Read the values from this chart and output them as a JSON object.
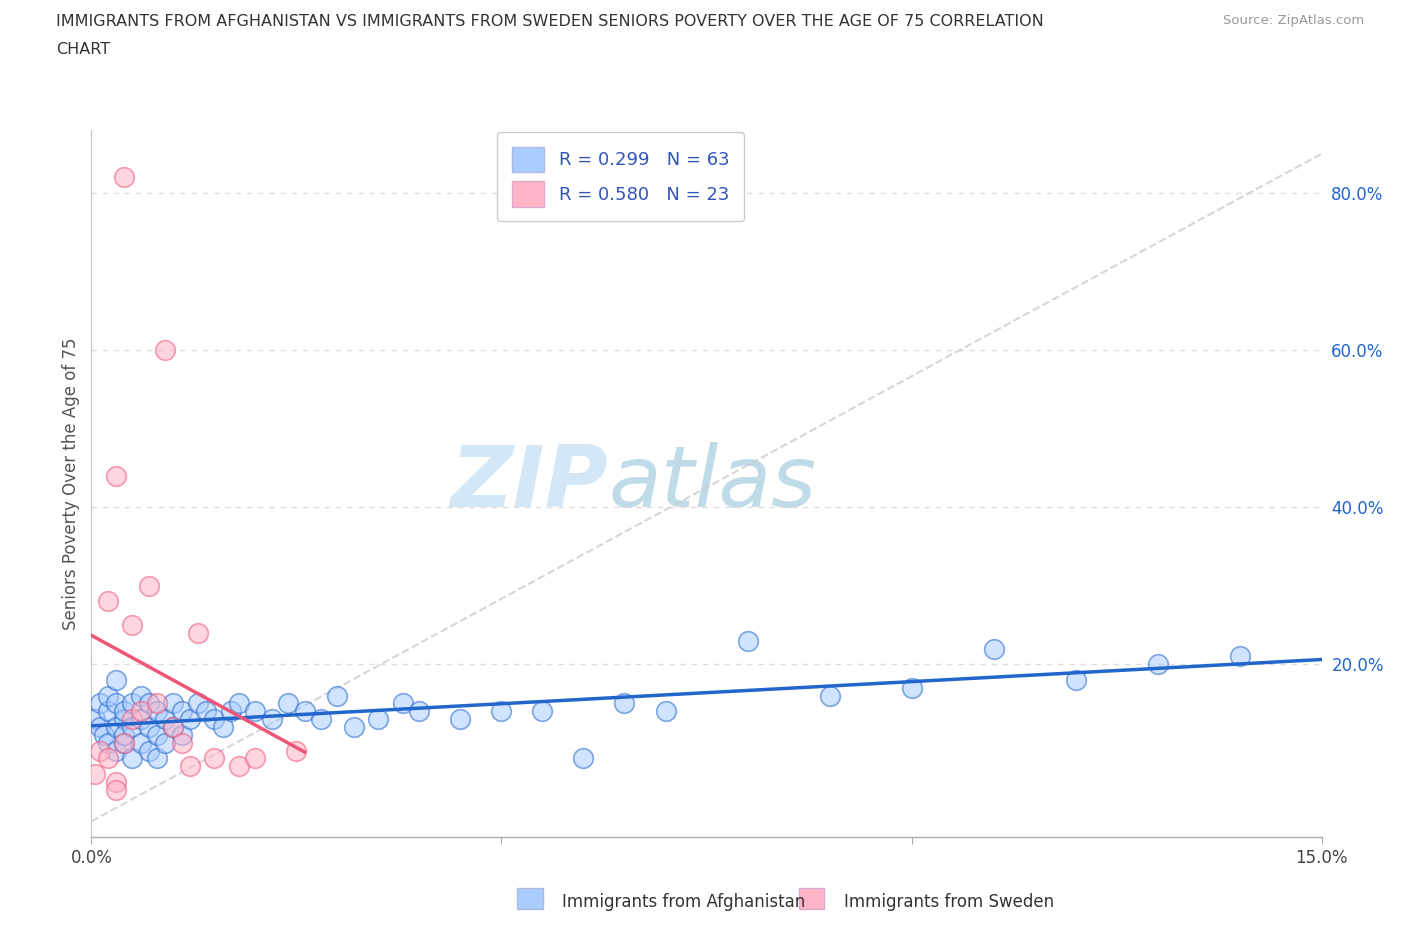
{
  "title_line1": "IMMIGRANTS FROM AFGHANISTAN VS IMMIGRANTS FROM SWEDEN SENIORS POVERTY OVER THE AGE OF 75 CORRELATION",
  "title_line2": "CHART",
  "source": "Source: ZipAtlas.com",
  "xlabel_bottom_af": "Immigrants from Afghanistan",
  "xlabel_bottom_sw": "Immigrants from Sweden",
  "ylabel": "Seniors Poverty Over the Age of 75",
  "xlim": [
    0.0,
    0.15
  ],
  "ylim": [
    -0.02,
    0.88
  ],
  "yticks_right": [
    0.2,
    0.4,
    0.6,
    0.8
  ],
  "ytick_right_labels": [
    "20.0%",
    "40.0%",
    "60.0%",
    "80.0%"
  ],
  "color_afghanistan": "#aaccff",
  "color_sweden": "#ffb3c6",
  "color_line_afghanistan": "#2266cc",
  "color_line_sweden": "#ee5577",
  "color_ref_line": "#cccccc",
  "R_afghanistan": 0.299,
  "N_afghanistan": 63,
  "R_sweden": 0.58,
  "N_sweden": 23,
  "afghanistan_x": [
    0.0005,
    0.001,
    0.001,
    0.0015,
    0.002,
    0.002,
    0.002,
    0.003,
    0.003,
    0.003,
    0.003,
    0.004,
    0.004,
    0.004,
    0.004,
    0.005,
    0.005,
    0.005,
    0.006,
    0.006,
    0.006,
    0.007,
    0.007,
    0.007,
    0.008,
    0.008,
    0.008,
    0.009,
    0.009,
    0.01,
    0.01,
    0.011,
    0.011,
    0.012,
    0.013,
    0.014,
    0.015,
    0.016,
    0.017,
    0.018,
    0.02,
    0.022,
    0.024,
    0.026,
    0.028,
    0.03,
    0.032,
    0.035,
    0.038,
    0.04,
    0.045,
    0.05,
    0.055,
    0.06,
    0.065,
    0.07,
    0.08,
    0.09,
    0.1,
    0.11,
    0.12,
    0.13,
    0.14
  ],
  "afghanistan_y": [
    0.13,
    0.12,
    0.15,
    0.11,
    0.1,
    0.14,
    0.16,
    0.09,
    0.12,
    0.15,
    0.18,
    0.1,
    0.13,
    0.11,
    0.14,
    0.08,
    0.12,
    0.15,
    0.1,
    0.13,
    0.16,
    0.09,
    0.12,
    0.15,
    0.08,
    0.11,
    0.14,
    0.1,
    0.13,
    0.12,
    0.15,
    0.11,
    0.14,
    0.13,
    0.15,
    0.14,
    0.13,
    0.12,
    0.14,
    0.15,
    0.14,
    0.13,
    0.15,
    0.14,
    0.13,
    0.16,
    0.12,
    0.13,
    0.15,
    0.14,
    0.13,
    0.14,
    0.14,
    0.08,
    0.15,
    0.14,
    0.23,
    0.16,
    0.17,
    0.22,
    0.18,
    0.2,
    0.21
  ],
  "sweden_x": [
    0.0005,
    0.001,
    0.002,
    0.002,
    0.003,
    0.003,
    0.004,
    0.005,
    0.005,
    0.006,
    0.007,
    0.008,
    0.009,
    0.01,
    0.011,
    0.012,
    0.013,
    0.015,
    0.018,
    0.02,
    0.025,
    0.003,
    0.004
  ],
  "sweden_y": [
    0.06,
    0.09,
    0.08,
    0.28,
    0.44,
    0.05,
    0.1,
    0.25,
    0.13,
    0.14,
    0.3,
    0.15,
    0.6,
    0.12,
    0.1,
    0.07,
    0.24,
    0.08,
    0.07,
    0.08,
    0.09,
    0.04,
    0.82
  ],
  "watermark_zip": "ZIP",
  "watermark_atlas": "atlas",
  "background_color": "#ffffff",
  "grid_color": "#dddddd",
  "legend_label_color": "#3355bb"
}
